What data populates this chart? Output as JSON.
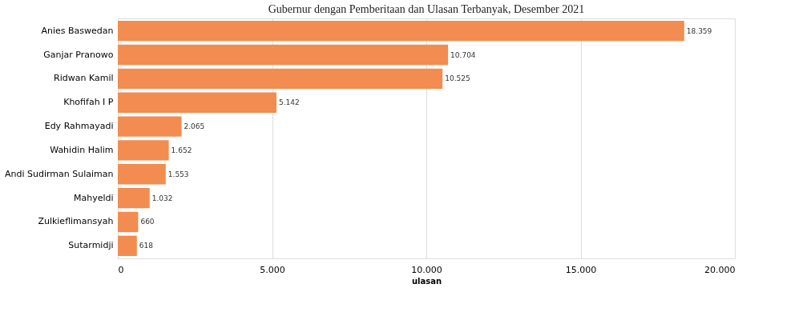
{
  "chart_data": {
    "type": "bar",
    "orientation": "horizontal",
    "title": "Gubernur dengan Pemberitaan dan Ulasan Terbanyak, Desember 2021",
    "xlabel": "ulasan",
    "categories": [
      "Anies Baswedan",
      "Ganjar Pranowo",
      "Ridwan Kamil",
      "Khofifah I P",
      "Edy Rahmayadi",
      "Wahidin Halim",
      "Andi Sudirman Sulaiman",
      "Mahyeldi",
      "Zulkieflimansyah",
      "Sutarmidji"
    ],
    "values": [
      18359,
      10704,
      10525,
      5142,
      2065,
      1652,
      1553,
      1032,
      660,
      618
    ],
    "value_labels": [
      "18.359",
      "10.704",
      "10.525",
      "5.142",
      "2.065",
      "1.652",
      "1.553",
      "1.032",
      "660",
      "618"
    ],
    "color": "#f28c50",
    "xlim": [
      0,
      20000
    ],
    "xticks": [
      0,
      {
        "value": 5000,
        "label": "5.000"
      },
      {
        "value": 10000,
        "label": "10.000"
      },
      {
        "value": 15000,
        "label": "15.000"
      },
      {
        "value": 20000,
        "label": "20.000"
      }
    ],
    "grid": "x"
  }
}
